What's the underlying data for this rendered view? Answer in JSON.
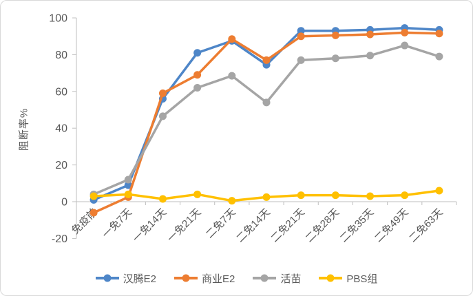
{
  "chart_data": {
    "type": "line",
    "title": "",
    "ylabel": "阻断率%",
    "xlabel": "",
    "ylim": [
      -20,
      100
    ],
    "y_ticks": [
      "100",
      "80",
      "60",
      "40",
      "20",
      "0",
      "-20"
    ],
    "categories": [
      "免疫前",
      "一免7天",
      "一免14天",
      "一免21天",
      "二免7天",
      "二免14天",
      "二免21天",
      "二免28天",
      "二免35天",
      "二免49天",
      "二免63天"
    ],
    "series": [
      {
        "name": "汉腾E2",
        "color": "#4E86C8",
        "values": [
          1,
          9,
          56,
          81,
          87.5,
          74.5,
          93,
          93,
          93.5,
          94.5,
          93.5
        ]
      },
      {
        "name": "商业E2",
        "color": "#ED7D31",
        "values": [
          -6,
          2.5,
          59,
          69,
          88.5,
          77,
          90,
          90.5,
          91,
          92,
          91.5
        ]
      },
      {
        "name": "活苗",
        "color": "#A5A5A5",
        "values": [
          4,
          12,
          46.5,
          62,
          68.5,
          54,
          77,
          78,
          79.5,
          85,
          79
        ]
      },
      {
        "name": "PBS组",
        "color": "#FFC000",
        "values": [
          3,
          4,
          1.5,
          4,
          0.5,
          2.5,
          3.5,
          3.5,
          3,
          3.5,
          6
        ]
      }
    ],
    "legend_position": "bottom",
    "grid": false,
    "markers": true,
    "axis_color": "#BFBFBF",
    "text_color": "#595959"
  }
}
